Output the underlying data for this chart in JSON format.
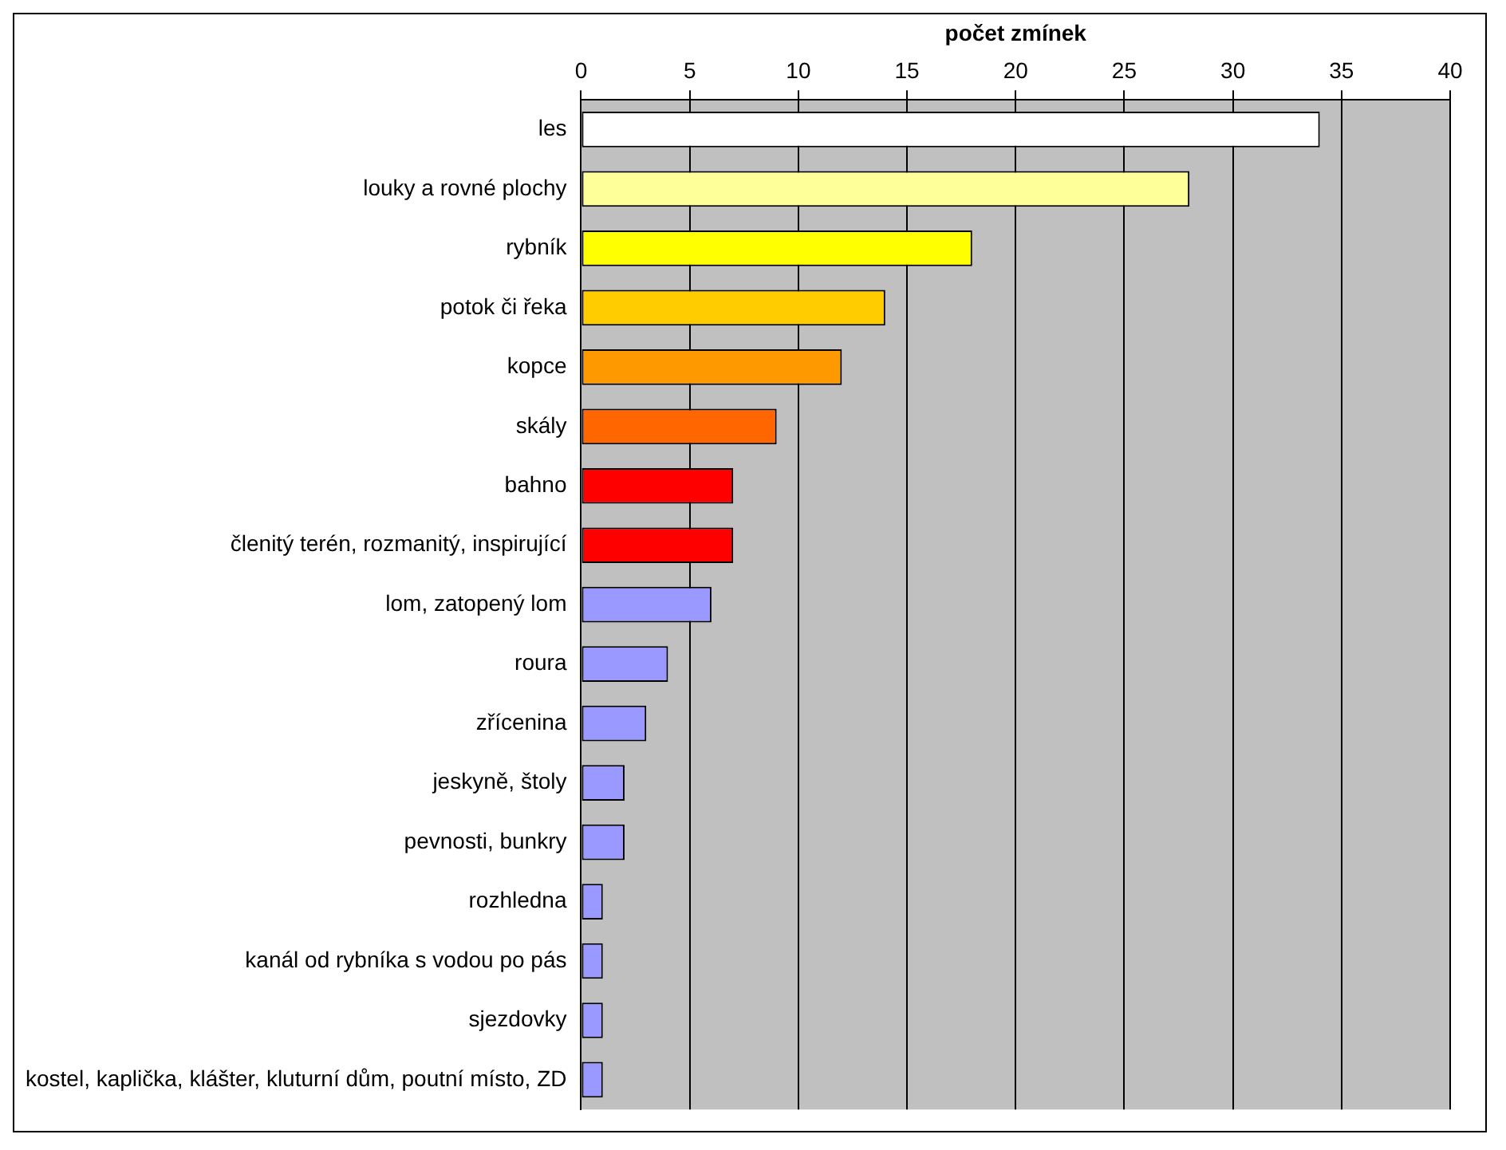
{
  "chart_data": {
    "type": "bar",
    "orientation": "horizontal",
    "xlabel": "počet zmínek",
    "categories": [
      "les",
      "louky a rovné plochy",
      "rybník",
      "potok či řeka",
      "kopce",
      "skály",
      "bahno",
      "členitý terén, rozmanitý, inspirující",
      "lom, zatopený lom",
      "roura",
      "zřícenina",
      "jeskyně, štoly",
      "pevnosti, bunkry",
      "rozhledna",
      "kanál od rybníka s vodou po pás",
      "sjezdovky",
      "kostel, kaplička, klášter, kluturní dům, poutní místo, ZD"
    ],
    "values": [
      34,
      28,
      18,
      14,
      12,
      9,
      7,
      7,
      6,
      4,
      3,
      2,
      2,
      1,
      1,
      1,
      1
    ],
    "colors": [
      "#ffffff",
      "#ffff99",
      "#ffff00",
      "#ffcc00",
      "#ff9900",
      "#ff6600",
      "#ff0000",
      "#ff0000",
      "#9999ff",
      "#9999ff",
      "#9999ff",
      "#9999ff",
      "#9999ff",
      "#9999ff",
      "#9999ff",
      "#9999ff",
      "#9999ff"
    ],
    "xlim": [
      0,
      40
    ],
    "xticks": [
      0,
      5,
      10,
      15,
      20,
      25,
      30,
      35,
      40
    ],
    "grid": "x",
    "legend": false
  }
}
